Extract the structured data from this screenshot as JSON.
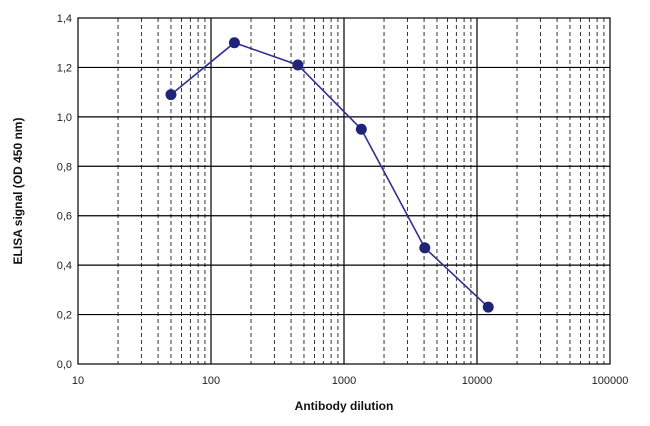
{
  "chart_data": {
    "type": "line",
    "title": "",
    "xlabel": "Antibody dilution",
    "ylabel": "ELISA signal (OD 450 nm)",
    "x_scale": "log",
    "xlim": [
      10,
      100000
    ],
    "ylim": [
      0,
      1.4
    ],
    "grid": true,
    "x_tick_labels": [
      "10",
      "100",
      "1000",
      "10000",
      "100000"
    ],
    "y_tick_labels": [
      "0,0",
      "0,2",
      "0,4",
      "0,6",
      "0,8",
      "1,0",
      "1,2",
      "1,4"
    ],
    "series": [
      {
        "x": [
          50,
          150,
          450,
          1350,
          4050,
          12150
        ],
        "y": [
          1.09,
          1.3,
          1.21,
          0.95,
          0.47,
          0.23
        ],
        "color": "#2e3192",
        "marker_color": "#1f2478"
      }
    ]
  }
}
